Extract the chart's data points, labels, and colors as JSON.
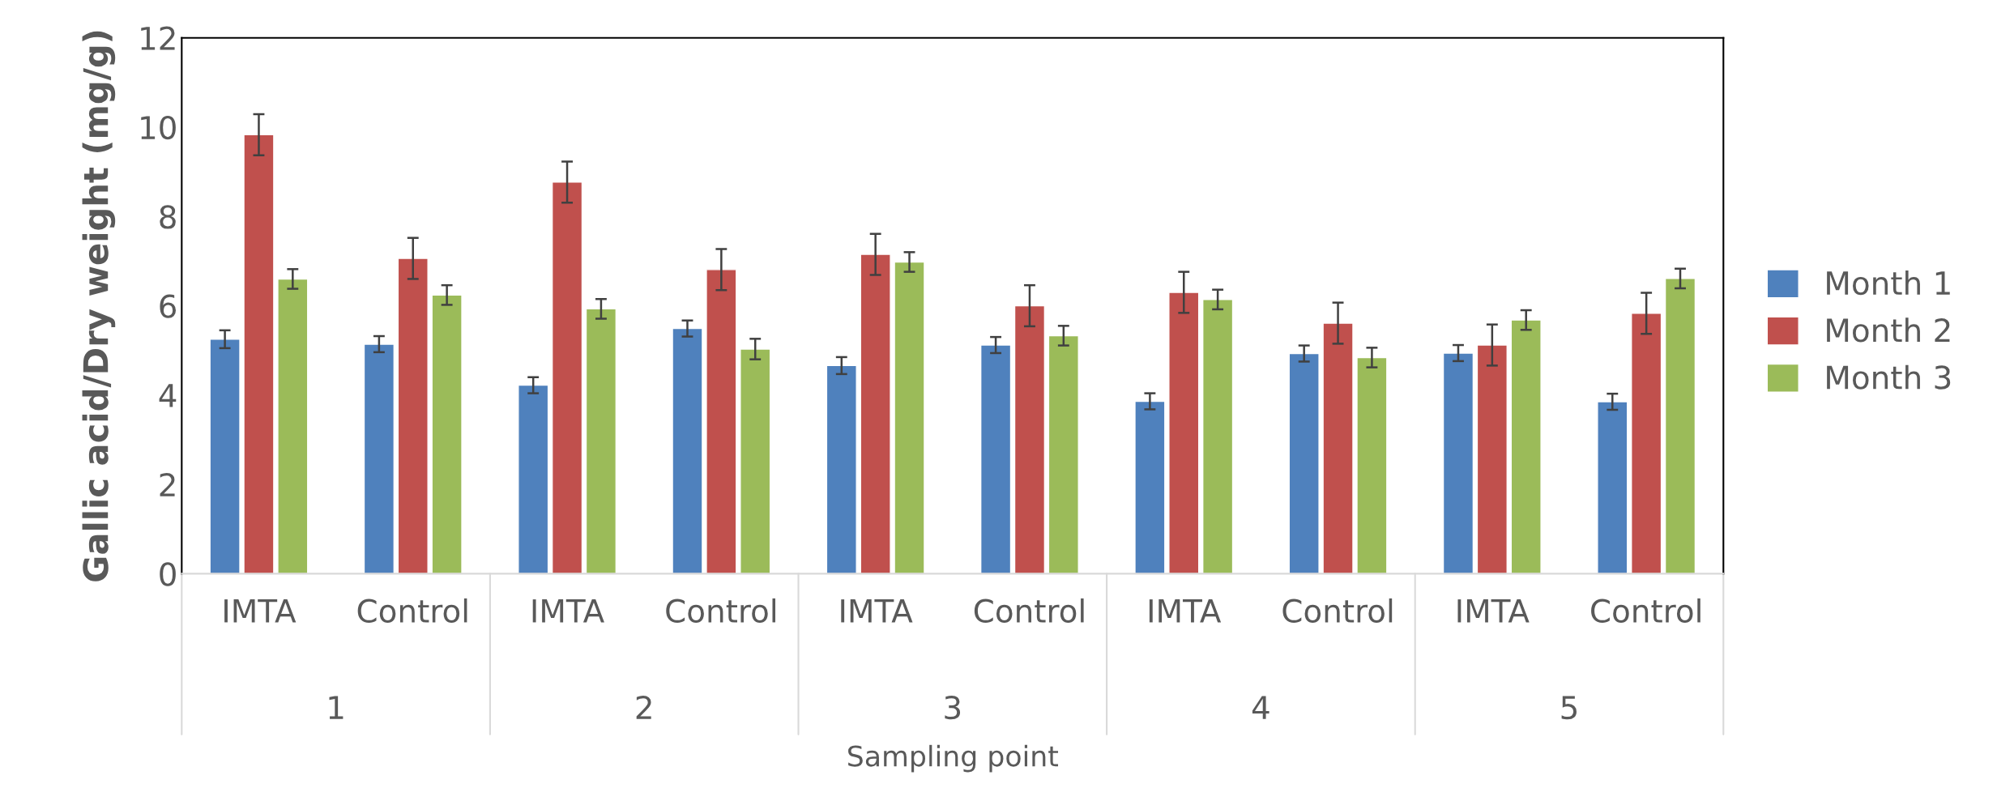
{
  "chart_data": {
    "type": "bar",
    "ylabel": "Gallic acid/Dry weight (mg/g)",
    "xlabel": "Sampling point",
    "categories": [
      "IMTA",
      "Control",
      "IMTA",
      "Control",
      "IMTA",
      "Control",
      "IMTA",
      "Control",
      "IMTA",
      "Control"
    ],
    "annotations": [
      "1",
      "2",
      "3",
      "4",
      "5"
    ],
    "series": [
      {
        "name": "Month 1",
        "color": "#4f81bd",
        "values": [
          5.25,
          5.14,
          4.22,
          5.49,
          4.66,
          5.12,
          3.86,
          4.93,
          4.94,
          3.85
        ],
        "errors": [
          0.2,
          0.18,
          0.18,
          0.18,
          0.19,
          0.18,
          0.18,
          0.18,
          0.18,
          0.18
        ]
      },
      {
        "name": "Month 2",
        "color": "#c0504d",
        "values": [
          9.83,
          7.06,
          8.77,
          6.81,
          7.15,
          6.0,
          6.3,
          5.61,
          5.12,
          5.83
        ],
        "errors": [
          0.46,
          0.46,
          0.46,
          0.46,
          0.46,
          0.46,
          0.46,
          0.46,
          0.46,
          0.46
        ]
      },
      {
        "name": "Month 3",
        "color": "#9bbb59",
        "values": [
          6.6,
          6.24,
          5.93,
          5.03,
          6.98,
          5.33,
          6.14,
          4.84,
          5.68,
          6.61
        ],
        "errors": [
          0.22,
          0.22,
          0.22,
          0.23,
          0.22,
          0.22,
          0.22,
          0.22,
          0.22,
          0.22
        ]
      }
    ],
    "ylim": [
      0,
      12
    ],
    "yticks": [
      0,
      2,
      4,
      6,
      8,
      10,
      12
    ],
    "grid": false,
    "legend": "right"
  }
}
